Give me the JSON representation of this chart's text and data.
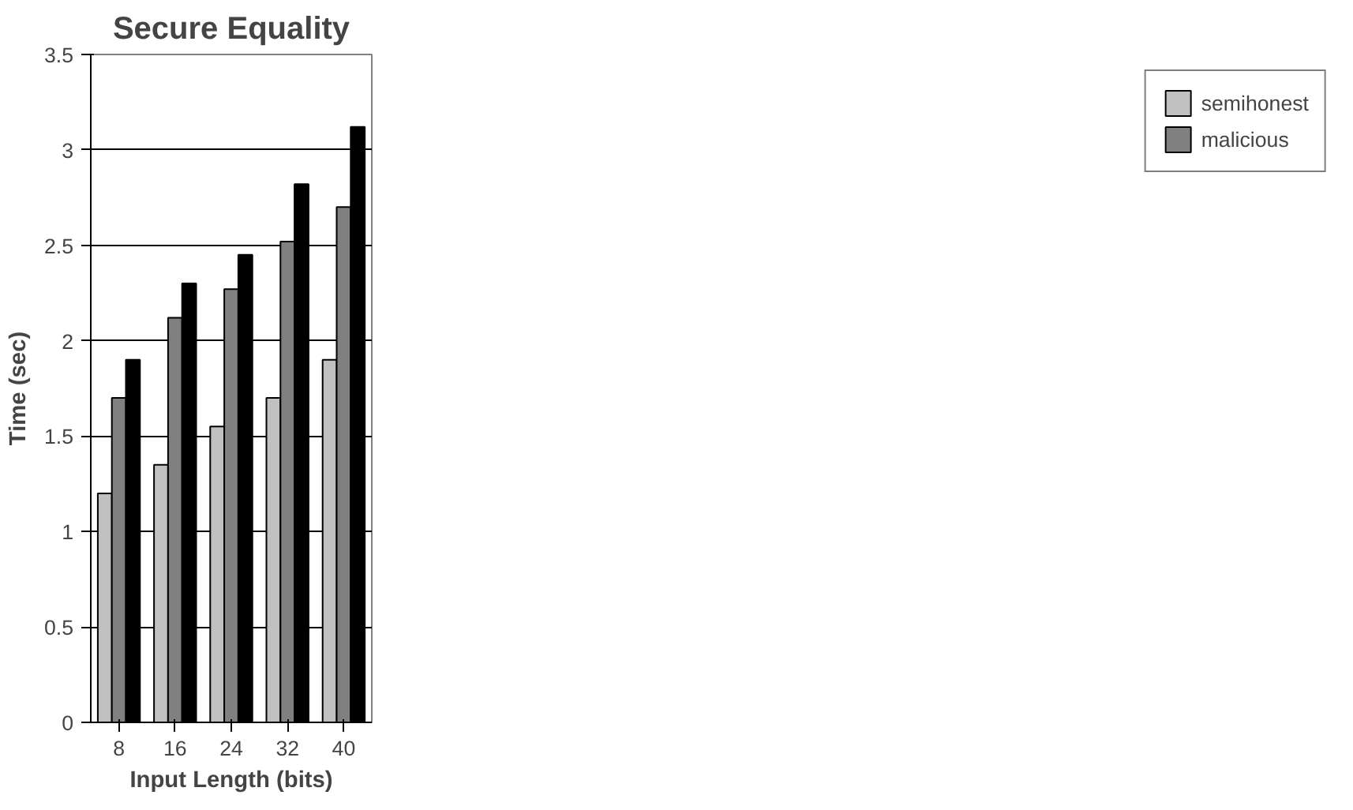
{
  "chart_data": {
    "type": "bar",
    "title": "Secure Equality",
    "xlabel": "Input Length (bits)",
    "ylabel": "Time (sec)",
    "categories": [
      "8",
      "16",
      "24",
      "32",
      "40"
    ],
    "series": [
      {
        "name": "semihonest",
        "color": "#c0c0c0",
        "values": [
          1.2,
          1.35,
          1.55,
          1.7,
          1.9
        ]
      },
      {
        "name": "malicious",
        "color": "#808080",
        "values": [
          1.7,
          2.12,
          2.27,
          2.52,
          2.7
        ]
      },
      {
        "color": "#000000",
        "values": [
          1.9,
          2.3,
          2.45,
          2.82,
          3.12
        ]
      }
    ],
    "ylim": [
      0,
      3.5
    ],
    "yticks": [
      0,
      0.5,
      1,
      1.5,
      2,
      2.5,
      3,
      3.5
    ],
    "grid": "y",
    "legend": "right"
  }
}
